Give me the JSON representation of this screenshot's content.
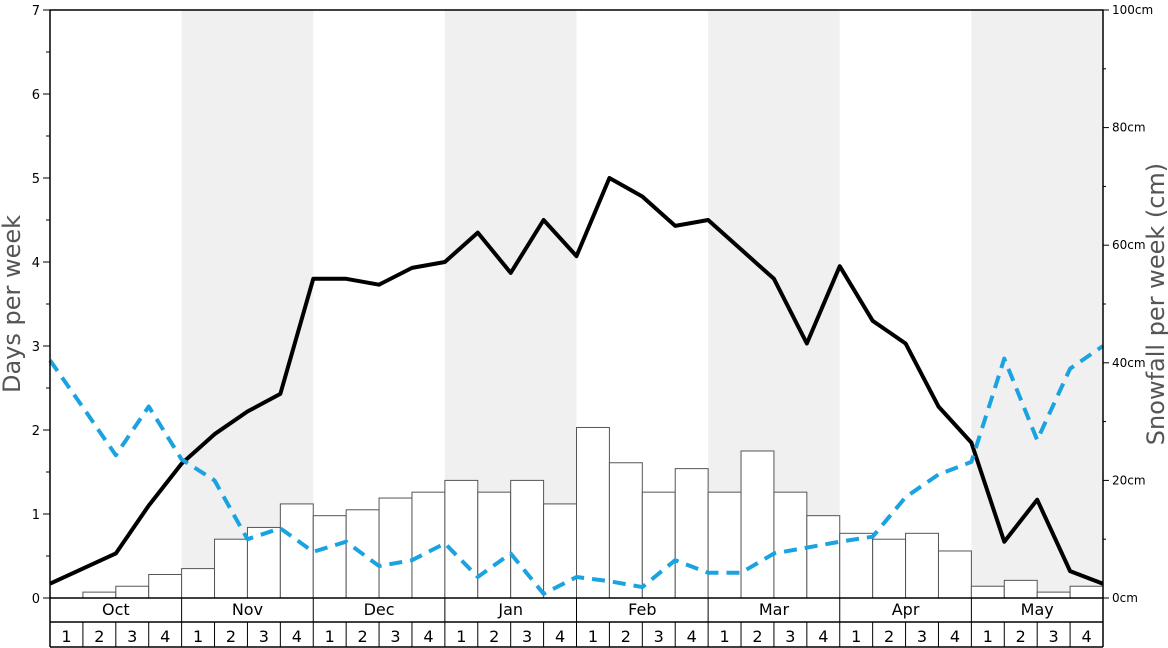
{
  "chart_data": {
    "type": "bar+line",
    "ylabel_left": "Days per week",
    "ylabel_right": "Snowfall per week (cm)",
    "ylim_left": [
      0,
      7
    ],
    "ylim_right": [
      0,
      100
    ],
    "yticks_left": [
      "0",
      "1",
      "2",
      "3",
      "4",
      "5",
      "6",
      "7"
    ],
    "yticks_right": [
      "0cm",
      "20cm",
      "40cm",
      "60cm",
      "80cm",
      "100cm"
    ],
    "months": [
      "Oct",
      "Nov",
      "Dec",
      "Jan",
      "Feb",
      "Mar",
      "Apr",
      "May"
    ],
    "week_labels": [
      "1",
      "2",
      "3",
      "4"
    ],
    "shaded_months": [
      "Nov",
      "Jan",
      "Mar",
      "May"
    ],
    "snowfall_cm": [
      0,
      1,
      2,
      4,
      5,
      10,
      12,
      16,
      14,
      15,
      17,
      18,
      20,
      18,
      20,
      16,
      29,
      23,
      18,
      22,
      18,
      25,
      18,
      14,
      11,
      10,
      11,
      8,
      2,
      3,
      1,
      2
    ],
    "series": [
      {
        "style": "solid-black",
        "axis": "left",
        "values": [
          0.17,
          0.35,
          0.53,
          1.1,
          1.6,
          1.95,
          2.22,
          2.43,
          3.8,
          3.8,
          3.73,
          3.93,
          4.0,
          4.35,
          3.87,
          4.5,
          4.07,
          5.0,
          4.78,
          4.43,
          4.5,
          4.15,
          3.8,
          3.03,
          3.95,
          3.3,
          3.03,
          2.28,
          1.85,
          0.67,
          1.17,
          0.32,
          0.17
        ]
      },
      {
        "style": "dashed-blue",
        "axis": "left",
        "values": [
          2.83,
          2.27,
          1.7,
          2.28,
          1.65,
          1.4,
          0.7,
          0.83,
          0.55,
          0.67,
          0.38,
          0.45,
          0.65,
          0.25,
          0.53,
          0.05,
          0.25,
          0.2,
          0.13,
          0.45,
          0.3,
          0.3,
          0.53,
          0.6,
          0.67,
          0.73,
          1.2,
          1.47,
          1.62,
          2.85,
          1.88,
          2.73,
          3.0
        ]
      }
    ],
    "colors": {
      "shade": "#f0f0f0",
      "bar_fill": "#ffffff",
      "bar_stroke": "#555555",
      "solid_line": "#000000",
      "dashed_line": "#1aa3e0"
    }
  }
}
